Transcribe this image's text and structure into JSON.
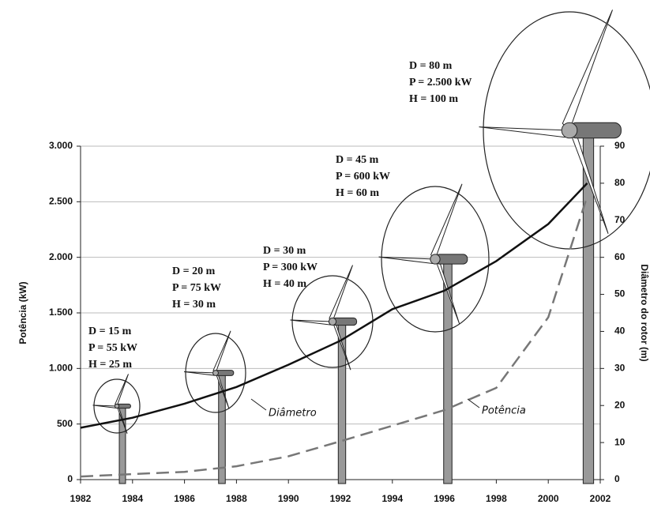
{
  "chart_data": {
    "type": "line",
    "y_label": "Potência (kW)",
    "y2_label": "Diâmetro do rotor (m)",
    "x": [
      1982,
      1984,
      1986,
      1988,
      1990,
      1992,
      1994,
      1996,
      1998,
      2000,
      2001.5
    ],
    "xlim": [
      1982,
      2002
    ],
    "xticks": [
      1982,
      1984,
      1986,
      1988,
      1990,
      1992,
      1994,
      1996,
      1998,
      2000,
      2002
    ],
    "ylim": [
      0,
      3000
    ],
    "yticks": [
      0,
      500,
      {
        "value": 1000,
        "label": "1.000"
      },
      {
        "value": 1500,
        "label": "1.500"
      },
      {
        "value": 2000,
        "label": "2.000"
      },
      {
        "value": 2500,
        "label": "2.500"
      },
      {
        "value": 3000,
        "label": "3.000"
      }
    ],
    "y2lim": [
      0,
      90
    ],
    "y2ticks": [
      0,
      10,
      20,
      30,
      40,
      50,
      60,
      70,
      80,
      90
    ],
    "grid": true,
    "series": [
      {
        "name": "Diâmetro",
        "color": "#111111",
        "axis": "y2",
        "dashed": false,
        "values": [
          14,
          16.7,
          20.5,
          25,
          31,
          37.5,
          46,
          51,
          59,
          69,
          80
        ]
      },
      {
        "name": "Potência",
        "color": "#777777",
        "axis": "y",
        "dashed": true,
        "values": [
          28,
          50,
          70,
          120,
          210,
          345,
          485,
          625,
          825,
          1460,
          2550
        ]
      }
    ],
    "annotations": [
      [
        "D = 15 m",
        "P = 55 kW",
        "H = 25 m"
      ],
      [
        "D = 20 m",
        "P = 75 kW",
        "H = 30 m"
      ],
      [
        "D = 30 m",
        "P = 300 kW",
        "H = 40 m"
      ],
      [
        "D = 45 m",
        "P = 600 kW",
        "H = 60 m"
      ],
      [
        "D = 80 m",
        "P = 2.500 kW",
        "H = 100 m"
      ]
    ]
  }
}
